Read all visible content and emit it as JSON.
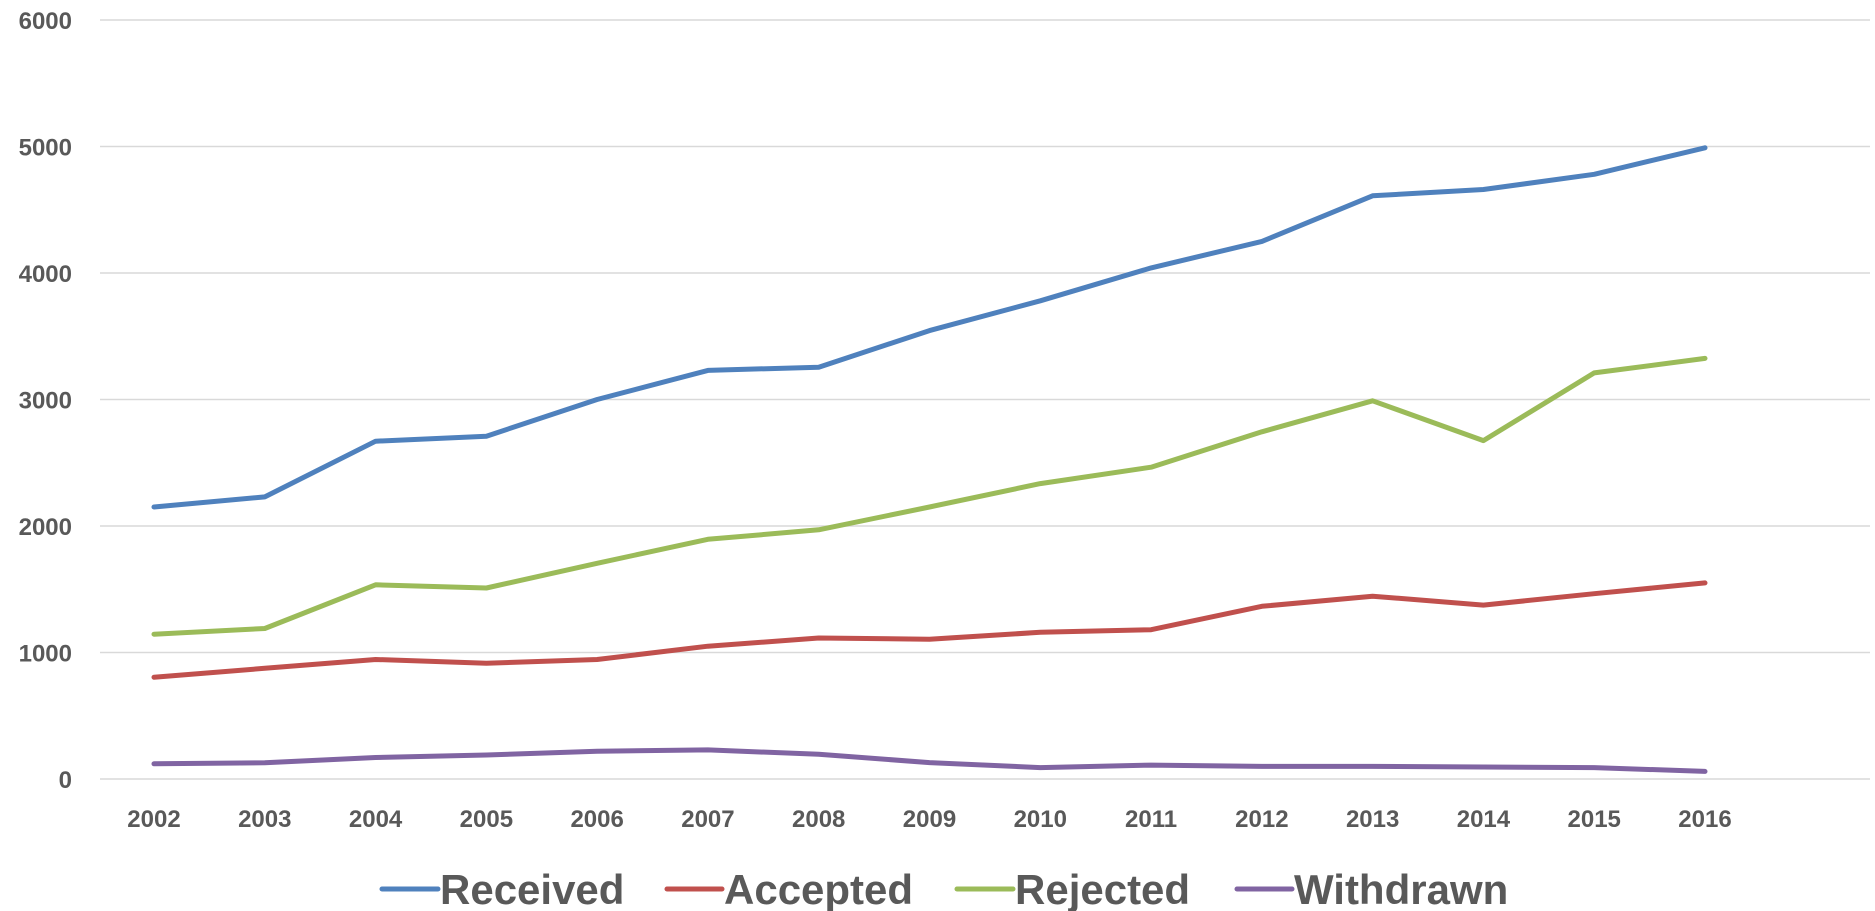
{
  "chart_data": {
    "type": "line",
    "title": "",
    "xlabel": "",
    "ylabel": "",
    "ylim": [
      0,
      6000
    ],
    "yticks": [
      0,
      1000,
      2000,
      3000,
      4000,
      5000,
      6000
    ],
    "categories": [
      "2002",
      "2003",
      "2004",
      "2005",
      "2006",
      "2007",
      "2008",
      "2009",
      "2010",
      "2011",
      "2012",
      "2013",
      "2014",
      "2015",
      "2016"
    ],
    "grid": true,
    "legend_position": "bottom",
    "series": [
      {
        "name": "Received",
        "color": "#4f81bd",
        "values": [
          2150,
          2230,
          2670,
          2710,
          3000,
          3230,
          3255,
          3545,
          3780,
          4040,
          4250,
          4610,
          4660,
          4780,
          4990
        ]
      },
      {
        "name": "Accepted",
        "color": "#c0504d",
        "values": [
          805,
          875,
          945,
          915,
          945,
          1050,
          1115,
          1105,
          1160,
          1180,
          1365,
          1445,
          1375,
          1465,
          1550
        ]
      },
      {
        "name": "Rejected",
        "color": "#9bbb59",
        "values": [
          1145,
          1190,
          1535,
          1510,
          1705,
          1895,
          1970,
          2150,
          2335,
          2465,
          2745,
          2990,
          2675,
          3210,
          3325
        ]
      },
      {
        "name": "Withdrawn",
        "color": "#8064a2",
        "values": [
          120,
          128,
          170,
          190,
          220,
          230,
          195,
          130,
          90,
          110,
          100,
          100,
          95,
          90,
          60
        ]
      }
    ]
  }
}
